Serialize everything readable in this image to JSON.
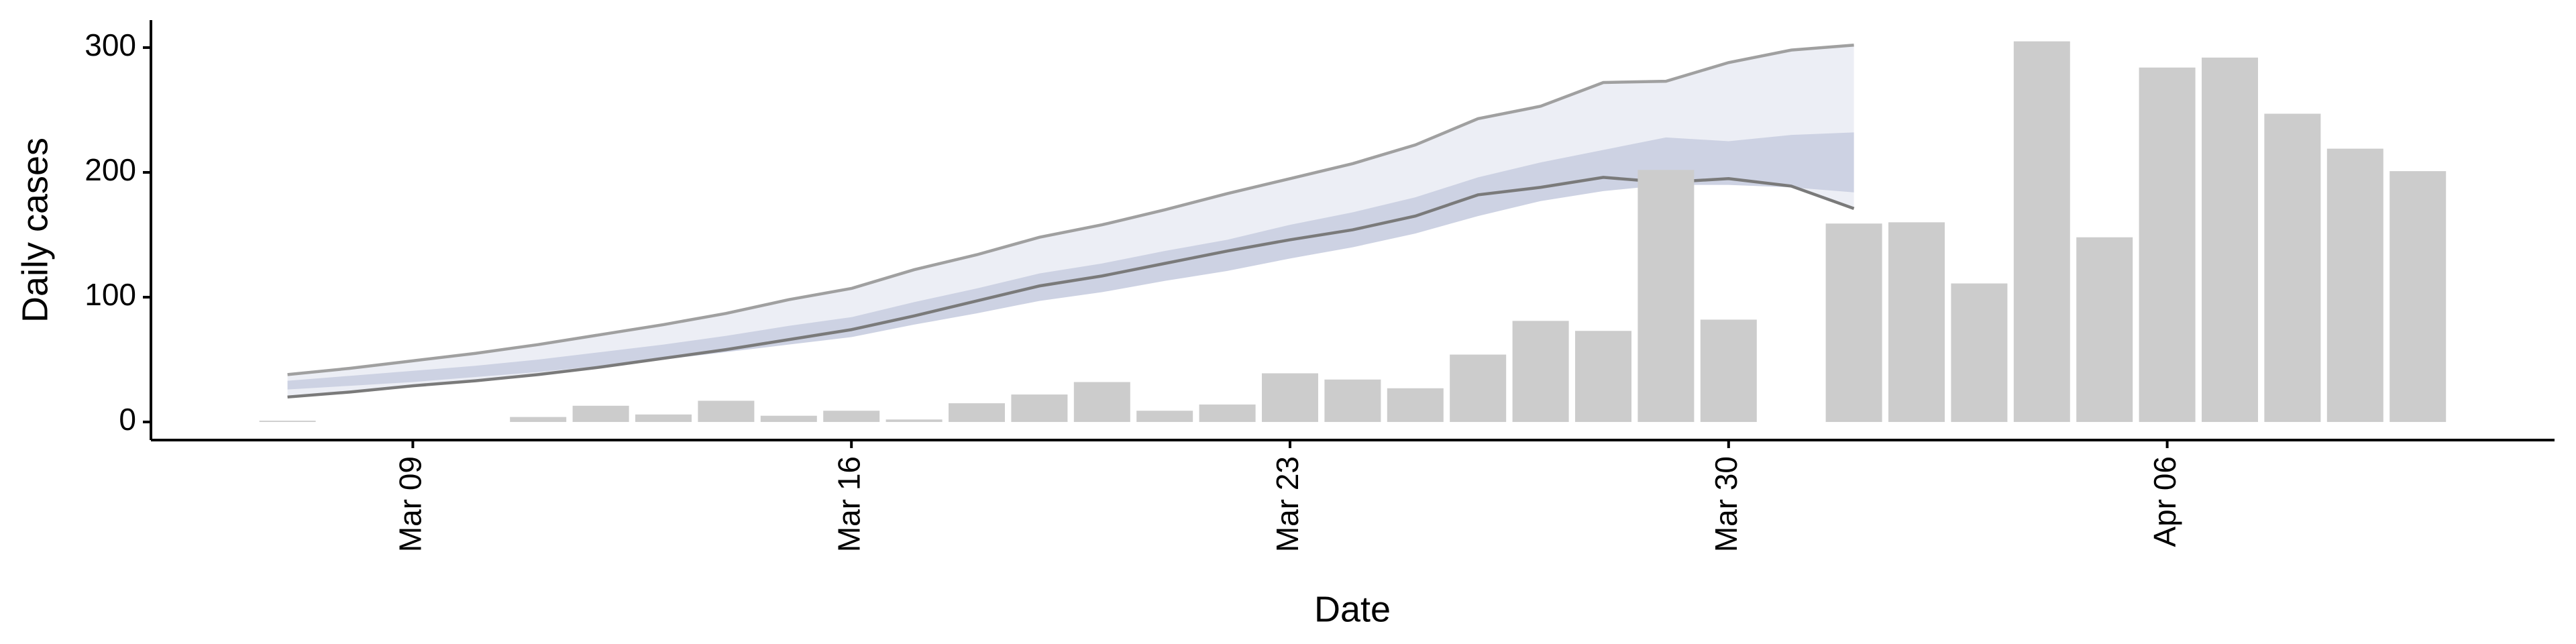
{
  "chart_data": {
    "type": "bar",
    "x_label": "Date",
    "y_label": "Daily cases",
    "categories": [
      null,
      null,
      "Mar 09",
      null,
      null,
      null,
      null,
      null,
      null,
      "Mar 16",
      null,
      null,
      null,
      null,
      null,
      null,
      "Mar 23",
      null,
      null,
      null,
      null,
      null,
      null,
      "Mar 30",
      null,
      null,
      null,
      null,
      null,
      null,
      "Apr 06",
      null,
      null,
      null,
      null
    ],
    "values": [
      1,
      null,
      null,
      null,
      4,
      13,
      6,
      17,
      5,
      9,
      2,
      15,
      22,
      32,
      9,
      14,
      39,
      34,
      27,
      54,
      81,
      73,
      202,
      82,
      null,
      159,
      160,
      111,
      305,
      148,
      284,
      292,
      247,
      219,
      201
    ],
    "color": "#cccccc",
    "band_outer": {
      "lower": [
        20,
        24,
        29,
        33,
        38,
        44,
        51,
        58,
        66,
        74,
        85,
        97,
        109,
        117,
        127,
        137,
        146,
        154,
        165,
        182,
        188,
        196,
        192,
        195,
        189,
        171
      ],
      "upper": [
        38,
        43,
        49,
        55,
        62,
        70,
        78,
        87,
        98,
        107,
        122,
        134,
        148,
        158,
        170,
        183,
        195,
        207,
        222,
        243,
        253,
        272,
        273,
        288,
        298,
        302
      ],
      "color": "#eceef5",
      "lower_color": "#7a7a7a",
      "upper_color": "#a0a0a0"
    },
    "band_inner": {
      "lower": [
        26,
        29,
        32,
        36,
        40,
        45,
        50,
        56,
        62,
        68,
        78,
        87,
        97,
        104,
        113,
        121,
        131,
        140,
        151,
        165,
        177,
        185,
        190,
        190,
        188,
        184
      ],
      "upper": [
        33,
        37,
        41,
        45,
        50,
        56,
        62,
        69,
        77,
        84,
        96,
        107,
        119,
        127,
        137,
        146,
        158,
        168,
        180,
        196,
        208,
        218,
        228,
        225,
        230,
        232
      ],
      "color": "#cdd2e3"
    },
    "ylim": [
      -14.5,
      322
    ],
    "yticks": [
      0,
      100,
      200,
      300
    ]
  }
}
